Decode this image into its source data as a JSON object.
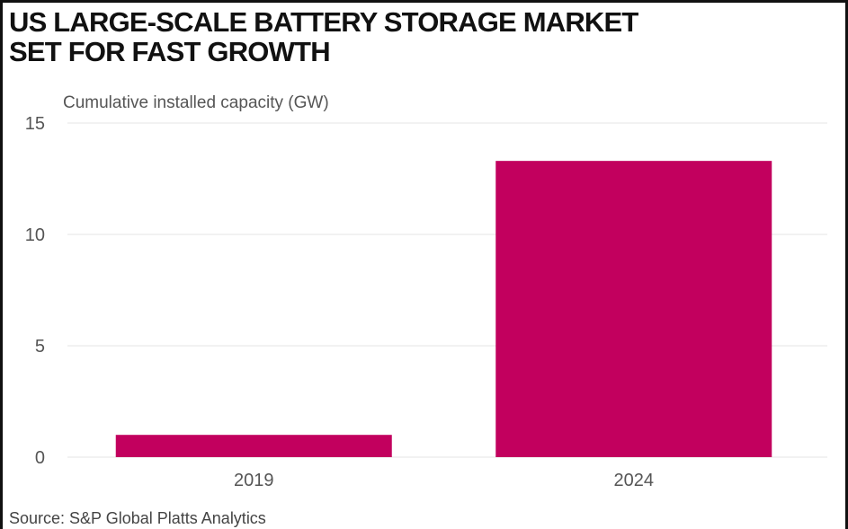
{
  "chart_data": {
    "type": "bar",
    "title": "US LARGE-SCALE BATTERY STORAGE MARKET SET FOR FAST GROWTH",
    "title_lines": [
      "US LARGE-SCALE BATTERY STORAGE MARKET",
      "SET FOR FAST GROWTH"
    ],
    "ylabel": "Cumulative installed capacity (GW)",
    "xlabel": "",
    "categories": [
      "2019",
      "2024"
    ],
    "values": [
      1.0,
      13.3
    ],
    "ylim": [
      0,
      15
    ],
    "yticks": [
      0,
      5,
      10,
      15
    ],
    "grid": true,
    "bar_color": "#c2005e",
    "source": "Source: S&P Global Platts Analytics"
  }
}
